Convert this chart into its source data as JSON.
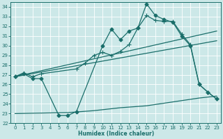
{
  "xlabel": "Humidex (Indice chaleur)",
  "xlim": [
    -0.5,
    23.5
  ],
  "ylim": [
    22,
    34.5
  ],
  "yticks": [
    22,
    23,
    24,
    25,
    26,
    27,
    28,
    29,
    30,
    31,
    32,
    33,
    34
  ],
  "xticks": [
    0,
    1,
    2,
    3,
    4,
    5,
    6,
    7,
    8,
    9,
    10,
    11,
    12,
    13,
    14,
    15,
    16,
    17,
    18,
    19,
    20,
    21,
    22,
    23
  ],
  "bg_color": "#cce8e8",
  "line_color": "#1a6e6a",
  "grid_color": "#ffffff",
  "line_diamond": {
    "x": [
      0,
      1,
      2,
      3,
      5,
      6,
      7,
      10,
      11,
      12,
      13,
      14,
      15,
      16,
      17,
      18,
      19,
      20,
      21,
      22,
      23
    ],
    "y": [
      26.8,
      27.1,
      26.6,
      26.6,
      22.8,
      22.8,
      23.2,
      30.0,
      31.7,
      30.6,
      31.5,
      31.8,
      34.3,
      33.1,
      32.7,
      32.4,
      31.0,
      30.0,
      26.0,
      25.2,
      24.5
    ]
  },
  "line_plus": {
    "x": [
      0,
      1,
      2,
      3,
      7,
      8,
      9,
      10,
      11,
      12,
      13,
      14,
      15,
      16,
      17,
      18,
      19,
      20,
      21,
      22,
      23
    ],
    "y": [
      26.8,
      27.2,
      26.8,
      27.1,
      27.6,
      28.2,
      29.0,
      29.3,
      29.0,
      29.4,
      30.1,
      31.8,
      33.1,
      32.6,
      32.5,
      32.5,
      31.2,
      30.1,
      26.0,
      25.2,
      24.5
    ]
  },
  "line_diag_upper": {
    "x": [
      0,
      23
    ],
    "y": [
      26.8,
      31.5
    ]
  },
  "line_diag_lower": {
    "x": [
      0,
      23
    ],
    "y": [
      26.8,
      30.5
    ]
  },
  "line_flat": {
    "x": [
      0,
      6,
      9,
      12,
      15,
      18,
      21,
      23
    ],
    "y": [
      23.0,
      23.1,
      23.3,
      23.6,
      23.8,
      24.2,
      24.6,
      24.8
    ]
  }
}
